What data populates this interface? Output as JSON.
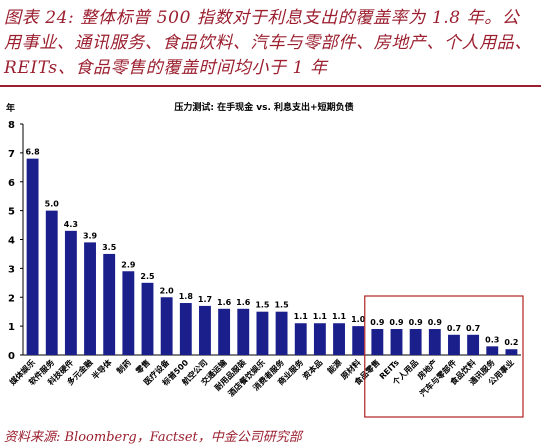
{
  "figure": {
    "heading": "图表 24: 整体标普 500 指数对于利息支出的覆盖率为 1.8 年。公用事业、通讯服务、食品饮料、汽车与零部件、房地产、个人用品、REITs、食品零售的覆盖时间均小于 1 年",
    "source": "资料来源: Bloomberg，Factset，中金公司研究部"
  },
  "colors": {
    "heading": "#9b1f2f",
    "bar": "#1b1f8c",
    "highlight_box": "#b22222"
  },
  "chart_data": {
    "type": "bar",
    "title": "压力测试: 在手现金 vs. 利息支出+短期负债",
    "ylabel": "年",
    "xlabel": "",
    "ylim": [
      0,
      8
    ],
    "yticks": [
      "0",
      "1",
      "2",
      "3",
      "4",
      "5",
      "6",
      "7",
      "8"
    ],
    "grid": false,
    "categories": [
      "媒体娱乐",
      "软件服务",
      "科技硬件",
      "多元金融",
      "半导体",
      "制药",
      "零售",
      "医疗设备",
      "标普500",
      "航空公司",
      "交通运输",
      "耐用品服装",
      "酒店餐饮娱乐",
      "消费者服务",
      "商业服务",
      "资本品",
      "能源",
      "原材料",
      "食品零售",
      "REITs",
      "个人用品",
      "房地产",
      "汽车与零部件",
      "食品饮料",
      "通讯服务",
      "公用事业"
    ],
    "values": [
      6.8,
      5.0,
      4.3,
      3.9,
      3.5,
      2.9,
      2.5,
      2.0,
      1.8,
      1.7,
      1.6,
      1.6,
      1.5,
      1.5,
      1.1,
      1.1,
      1.1,
      1.0,
      0.9,
      0.9,
      0.9,
      0.9,
      0.7,
      0.7,
      0.3,
      0.2
    ],
    "data_labels": [
      "6.8",
      "5.0",
      "4.3",
      "3.9",
      "3.5",
      "2.9",
      "2.5",
      "2.0",
      "1.8",
      "1.7",
      "1.6",
      "1.6",
      "1.5",
      "1.5",
      "1.1",
      "1.1",
      "1.1",
      "1.0",
      "0.9",
      "0.9",
      "0.9",
      "0.9",
      "0.7",
      "0.7",
      "0.3",
      "0.2"
    ],
    "highlight": {
      "from": "食品零售",
      "to": "公用事业"
    }
  }
}
